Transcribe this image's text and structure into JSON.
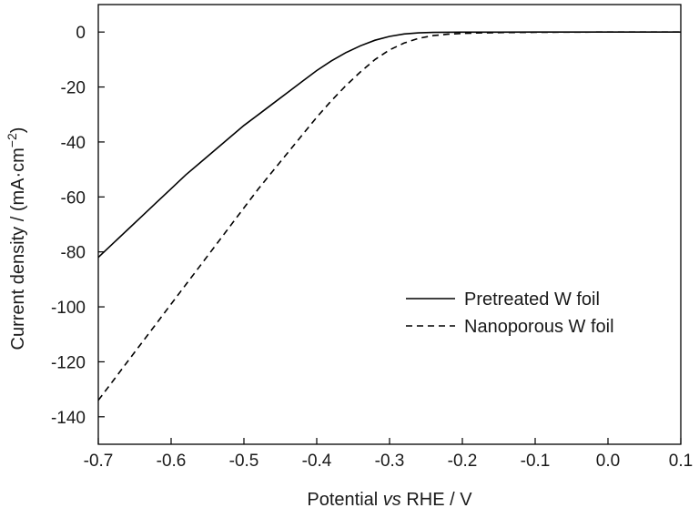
{
  "chart_data": {
    "type": "line",
    "xlabel": {
      "prefix": "Potential ",
      "italic": "vs",
      "suffix": " RHE / V"
    },
    "ylabel": {
      "main": "Current density / (mA·cm",
      "superscript": "−2",
      "close": ")"
    },
    "xlim": [
      -0.7,
      0.1
    ],
    "ylim": [
      -150,
      10
    ],
    "xticks": [
      -0.7,
      -0.6,
      -0.5,
      -0.4,
      -0.3,
      -0.2,
      -0.1,
      0.0,
      0.1
    ],
    "xtick_labels": [
      "-0.7",
      "-0.6",
      "-0.5",
      "-0.4",
      "-0.3",
      "-0.2",
      "-0.1",
      "0.0",
      "0.1"
    ],
    "yticks": [
      0,
      -20,
      -40,
      -60,
      -80,
      -100,
      -120,
      -140
    ],
    "ytick_labels": [
      "0",
      "-20",
      "-40",
      "-60",
      "-80",
      "-100",
      "-120",
      "-140"
    ],
    "legend_position": "center-right",
    "grid": false,
    "series": [
      {
        "name": "Pretreated W foil",
        "style": "solid",
        "x": [
          -0.7,
          -0.68,
          -0.66,
          -0.64,
          -0.62,
          -0.6,
          -0.58,
          -0.56,
          -0.54,
          -0.52,
          -0.5,
          -0.48,
          -0.46,
          -0.44,
          -0.42,
          -0.4,
          -0.38,
          -0.36,
          -0.34,
          -0.32,
          -0.3,
          -0.28,
          -0.26,
          -0.24,
          -0.22,
          -0.2,
          -0.15,
          -0.1,
          -0.05,
          0.0,
          0.05,
          0.1
        ],
        "y": [
          -82,
          -77,
          -72,
          -67,
          -62,
          -57,
          -52,
          -47.5,
          -43,
          -38.5,
          -34,
          -30,
          -26,
          -22,
          -18,
          -14,
          -10.5,
          -7.5,
          -5,
          -3,
          -1.6,
          -0.7,
          -0.3,
          -0.15,
          -0.08,
          -0.05,
          -0.03,
          -0.02,
          -0.01,
          -0.01,
          0,
          0
        ]
      },
      {
        "name": "Nanoporous W foil",
        "style": "dashed",
        "x": [
          -0.7,
          -0.68,
          -0.66,
          -0.64,
          -0.62,
          -0.6,
          -0.58,
          -0.56,
          -0.54,
          -0.52,
          -0.5,
          -0.48,
          -0.46,
          -0.44,
          -0.42,
          -0.4,
          -0.38,
          -0.36,
          -0.34,
          -0.32,
          -0.3,
          -0.28,
          -0.26,
          -0.24,
          -0.22,
          -0.2,
          -0.18,
          -0.15,
          -0.1,
          -0.05,
          0.0,
          0.05,
          0.1
        ],
        "y": [
          -134,
          -127,
          -120,
          -113,
          -106,
          -99,
          -92,
          -85,
          -78,
          -71,
          -64,
          -57,
          -50.5,
          -44,
          -37.5,
          -31,
          -25,
          -19.5,
          -14.5,
          -10,
          -6.5,
          -4,
          -2.3,
          -1.3,
          -0.8,
          -0.5,
          -0.35,
          -0.2,
          -0.1,
          -0.05,
          -0.02,
          0,
          0
        ]
      }
    ]
  }
}
